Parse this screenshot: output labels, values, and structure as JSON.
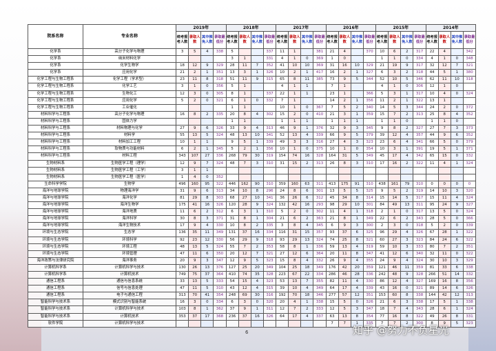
{
  "table": {
    "columns": [
      "院系名称",
      "专业名称"
    ],
    "years": [
      "2019年",
      "2018年",
      "2017年",
      "2016年",
      "2015年",
      "2014年"
    ],
    "subcolumns": [
      "统考报考人数",
      "录取人数",
      "其中推免人数",
      "录取最低分"
    ],
    "rows": [
      [
        "化学系",
        "高分子化学与物理",
        3,
        5,
        4,
        338,
        5,
        null,
        null,
        337,
        11,
        1,
        null,
        381,
        21,
        4,
        null,
        370,
        10,
        6,
        2,
        317,
        22,
        4,
        null,
        342
      ],
      [
        "化学系",
        "纳米材料化学",
        null,
        null,
        null,
        null,
        3,
        1,
        null,
        331,
        4,
        1,
        0,
        369,
        1,
        0,
        null,
        null,
        1,
        1,
        0,
        334,
        4,
        1,
        0,
        348
      ],
      [
        "化学系",
        "化学生物学",
        18,
        12,
        9,
        329,
        28,
        11,
        7,
        352,
        41,
        10,
        10,
        369,
        31,
        16,
        10,
        329,
        21,
        19,
        9,
        317,
        32,
        12,
        7,
        321
      ],
      [
        "化学系",
        "应用化学",
        21,
        2,
        1,
        351,
        13,
        3,
        1,
        326,
        10,
        2,
        1,
        417,
        16,
        2,
        1,
        327,
        6,
        3,
        2,
        318,
        44,
        5,
        1,
        380
      ],
      [
        "化学工程与生物工程系",
        "化学工程（学术型）",
        23,
        11,
        8,
        318,
        51,
        11,
        9,
        315,
        65,
        8,
        11,
        385,
        73,
        9,
        5,
        344,
        52,
        10,
        5,
        346,
        62,
        11,
        10,
        318
      ],
      [
        "化学工程与生物工程系",
        "化学工艺",
        3,
        1,
        0,
        356,
        5,
        1,
        null,
        null,
        4,
        1,
        1,
        null,
        7,
        1,
        null,
        null,
        4,
        1,
        0,
        306,
        12,
        1,
        0,
        null
      ],
      [
        "化学工程与生物工程系",
        "生物化工",
        12,
        3,
        0,
        305,
        8,
        1,
        null,
        337,
        22,
        1,
        1,
        null,
        23,
        1,
        null,
        366,
        5,
        3,
        1,
        317,
        10,
        4,
        0,
        324
      ],
      [
        "化学工程与生物工程系",
        "应用化学",
        5,
        2,
        0,
        321,
        6,
        1,
        0,
        332,
        7,
        1,
        null,
        null,
        14,
        2,
        1,
        356,
        11,
        2,
        1,
        322,
        13,
        1,
        null,
        null
      ],
      [
        "化学工程与生物工程系",
        "工业催化",
        null,
        null,
        null,
        null,
        1,
        1,
        null,
        null,
        10,
        1,
        0,
        367,
        7,
        5,
        2,
        340,
        14,
        5,
        3,
        344,
        24,
        2,
        0,
        372
      ],
      [
        "材料科学与工程系",
        "高分子化学与物理",
        16,
        8,
        2,
        335,
        20,
        8,
        4,
        302,
        15,
        2,
        0,
        410,
        21,
        3,
        1,
        359,
        15,
        7,
        2,
        313,
        25,
        8,
        4,
        352
      ],
      [
        "材料科学与工程系",
        "固体力学",
        null,
        null,
        null,
        null,
        1,
        1,
        null,
        null,
        1,
        1,
        1,
        null,
        1,
        1,
        1,
        null,
        1,
        1,
        0,
        null,
        1,
        1,
        0,
        null
      ],
      [
        "材料科学与工程系",
        "材料物理与化学",
        27,
        9,
        6,
        326,
        33,
        9,
        4,
        313,
        46,
        9,
        1,
        376,
        32,
        9,
        3,
        345,
        9,
        8,
        2,
        327,
        27,
        7,
        3,
        373
      ],
      [
        "材料科学与工程系",
        "材料学",
        55,
        13,
        5,
        324,
        48,
        13,
        10,
        341,
        52,
        13,
        4,
        339,
        66,
        9,
        5,
        379,
        39,
        12,
        4,
        357,
        44,
        9,
        6,
        352
      ],
      [
        "材料科学与工程系",
        "材料加工工程",
        10,
        1,
        1,
        null,
        9,
        5,
        1,
        339,
        49,
        3,
        3,
        316,
        27,
        4,
        3,
        323,
        23,
        6,
        4,
        341,
        66,
        5,
        0,
        379
      ],
      [
        "材料科学与工程系",
        "软物质与功能材料",
        6,
        2,
        1,
        345,
        5,
        2,
        1,
        356,
        10,
        1,
        0,
        375,
        10,
        1,
        0,
        354,
        10,
        3,
        1,
        391,
        19,
        5,
        1,
        371
      ],
      [
        "材料科学与工程系",
        "材料工程",
        343,
        107,
        27,
        336,
        268,
        79,
        30,
        319,
        154,
        74,
        16,
        328,
        164,
        31,
        5,
        349,
        45,
        17,
        4,
        342,
        65,
        15,
        0,
        332
      ],
      [
        "生物材料系",
        "生物医学工程（理学）",
        12,
        9,
        7,
        324,
        48,
        7,
        3,
        310,
        31,
        15,
        2,
        313,
        26,
        8,
        3,
        310,
        17,
        16,
        2,
        322,
        11,
        4,
        1,
        324
      ],
      [
        "生物材料系",
        "生物医学工程（工学）",
        3,
        1,
        1,
        null,
        null,
        null,
        null,
        null,
        null,
        null,
        null,
        null,
        null,
        null,
        null,
        null,
        null,
        null,
        null,
        null,
        null,
        null,
        null,
        null
      ],
      [
        "生物材料系",
        "生物医学工程（医学）",
        1,
        4,
        0,
        352,
        null,
        null,
        null,
        null,
        null,
        null,
        null,
        null,
        null,
        null,
        null,
        null,
        null,
        null,
        null,
        null,
        null,
        null,
        null,
        null
      ],
      [
        "生命科学学院",
        "生物学",
        496,
        160,
        95,
        322,
        446,
        162,
        90,
        310,
        359,
        160,
        63,
        311,
        413,
        175,
        91,
        310,
        438,
        161,
        79,
        310,
        0,
        0,
        0,
        0
      ],
      [
        "海洋与地球学院",
        "物理海洋学",
        31,
        9,
        6,
        313,
        34,
        10,
        8,
        296,
        24,
        8,
        6,
        301,
        13,
        5,
        5,
        325,
        9,
        5,
        2,
        319,
        14,
        10,
        3,
        320
      ],
      [
        "海洋与地球学院",
        "海洋化学",
        81,
        29,
        8,
        303,
        68,
        27,
        10,
        341,
        36,
        26,
        6,
        312,
        45,
        34,
        8,
        314,
        15,
        14,
        5,
        317,
        15,
        11,
        4,
        324
      ],
      [
        "海洋与地球学院",
        "海洋生物学",
        175,
        41,
        16,
        326,
        120,
        28,
        9,
        324,
        132,
        42,
        16,
        293,
        98,
        29,
        10,
        301,
        84,
        49,
        13,
        311,
        95,
        24,
        9,
        327
      ],
      [
        "海洋与地球学院",
        "海洋地质",
        11,
        6,
        2,
        312,
        6,
        3,
        1,
        310,
        5,
        2,
        0,
        302,
        11,
        4,
        1,
        318,
        2,
        1,
        0,
        317,
        13,
        5,
        0,
        324
      ],
      [
        "海洋与地球学院",
        "海洋科学",
        30,
        8,
        3,
        371,
        31,
        8,
        1,
        304,
        21,
        6,
        2,
        363,
        21,
        8,
        1,
        349,
        22,
        6,
        2,
        343,
        28,
        5,
        0,
        366
      ],
      [
        "海洋与地球学院",
        "海洋生物技术",
        17,
        9,
        4,
        330,
        10,
        8,
        2,
        335,
        3,
        8,
        4,
        345,
        6,
        9,
        3,
        300,
        2,
        3,
        0,
        318,
        5,
        2,
        0,
        339
      ],
      [
        "环境与生态学院",
        "生态学",
        136,
        35,
        11,
        349,
        131,
        37,
        16,
        334,
        116,
        31,
        15,
        357,
        93,
        37,
        6,
        325,
        96,
        29,
        4,
        326,
        67,
        28,
        1,
        322
      ],
      [
        "环境与生态学院",
        "环境科学",
        92,
        23,
        12,
        330,
        56,
        29,
        9,
        318,
        93,
        29,
        13,
        324,
        74,
        25,
        8,
        321,
        60,
        27,
        3,
        323,
        84,
        24,
        6,
        322
      ],
      [
        "环境与生态学院",
        "环境工程",
        48,
        13,
        5,
        324,
        55,
        7,
        2,
        353,
        58,
        8,
        1,
        336,
        59,
        13,
        4,
        319,
        59,
        10,
        3,
        333,
        80,
        7,
        2,
        351
      ],
      [
        "环境与生态学院",
        "环境管理",
        47,
        11,
        6,
        350,
        20,
        12,
        7,
        321,
        27,
        12,
        6,
        364,
        20,
        11,
        8,
        347,
        41,
        12,
        6,
        340,
        32,
        11,
        0,
        322
      ],
      [
        "海洋政策与法律研究院",
        "海洋事务",
        20,
        9,
        3,
        347,
        12,
        9,
        5,
        323,
        15,
        8,
        4,
        332,
        26,
        9,
        4,
        355,
        24,
        9,
        4,
        324,
        30,
        10,
        3,
        329
      ],
      [
        "计算机科学系",
        "计算机科学与技术",
        130,
        26,
        13,
        376,
        127,
        25,
        20,
        349,
        104,
        25,
        18,
        349,
        176,
        42,
        20,
        359,
        121,
        46,
        11,
        359,
        81,
        33,
        6,
        338
      ],
      [
        "计算机科学系",
        "计算机技术",
        749,
        75,
        37,
        364,
        410,
        74,
        35,
        328,
        223,
        67,
        22,
        334,
        286,
        46,
        28,
        336,
        242,
        48,
        9,
        328,
        266,
        51,
        14,
        332
      ],
      [
        "通信工程系",
        "通信与信息系统",
        33,
        13,
        5,
        333,
        54,
        15,
        4,
        323,
        53,
        13,
        7,
        355,
        82,
        11,
        4,
        330,
        86,
        12,
        4,
        327,
        169,
        16,
        8,
        356
      ],
      [
        "通信工程系",
        "信号与信息处理",
        47,
        11,
        5,
        310,
        43,
        12,
        4,
        315,
        39,
        10,
        4,
        349,
        64,
        17,
        4,
        339,
        43,
        16,
        0,
        321,
        89,
        14,
        6,
        326
      ],
      [
        "通信工程系",
        "电子与通信工程",
        313,
        70,
        41,
        354,
        248,
        69,
        30,
        316,
        192,
        70,
        18,
        346,
        277,
        57,
        12,
        351,
        153,
        60,
        8,
        338,
        144,
        42,
        12,
        313
      ],
      [
        "智能科学与技术系",
        "模式识别与智能系统",
        16,
        3,
        0,
        334,
        6,
        3,
        0,
        320,
        20,
        4,
        1,
        338,
        15,
        5,
        0,
        326,
        21,
        6,
        3,
        338,
        17,
        5,
        1,
        338
      ],
      [
        "智能科学与技术系",
        "计算机科学与技术",
        103,
        8,
        1,
        362,
        37,
        9,
        1,
        311,
        12,
        7,
        2,
        333,
        12,
        5,
        3,
        347,
        18,
        7,
        4,
        343,
        28,
        6,
        1,
        324
      ],
      [
        "智能科学与技术系",
        "计算机技术",
        353,
        37,
        17,
        368,
        236,
        37,
        16,
        326,
        64,
        17,
        4,
        337,
        63,
        13,
        8,
        354,
        77,
        16,
        8,
        322,
        49,
        26,
        8,
        331
      ],
      [
        "软件学院",
        "计算机科学与技术",
        null,
        null,
        null,
        null,
        null,
        null,
        null,
        null,
        null,
        null,
        null,
        null,
        7,
        7,
        1,
        335,
        7,
        7,
        2,
        300,
        8,
        9,
        5,
        323
      ]
    ]
  },
  "page_number": "6",
  "watermark": "知乎 @努力不负星光"
}
